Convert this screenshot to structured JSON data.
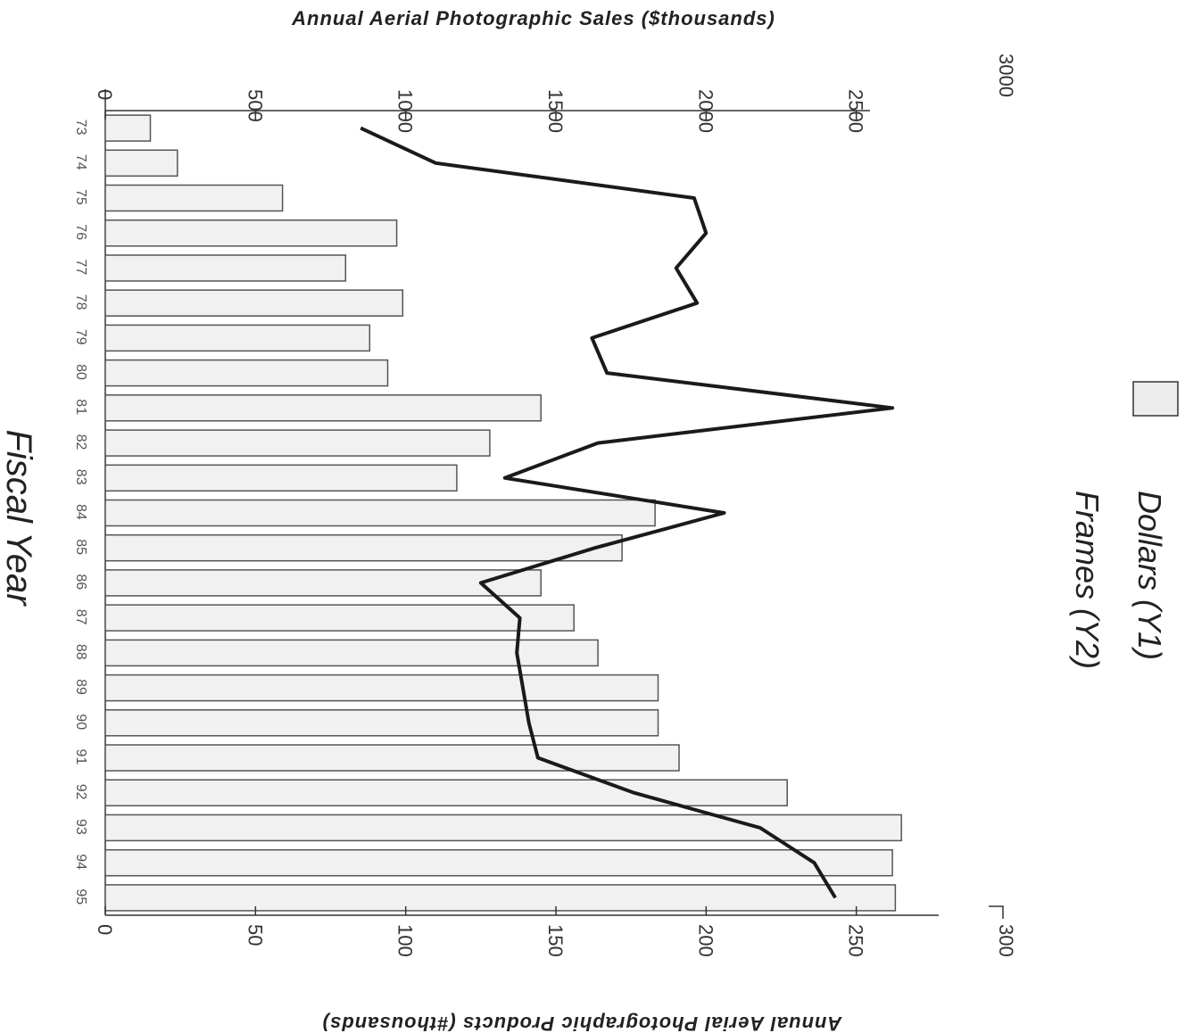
{
  "chart_data": {
    "type": "bar",
    "title": "",
    "orientation": "horizontal bars (figure rotated 90°)",
    "categories": [
      "73",
      "74",
      "75",
      "76",
      "77",
      "78",
      "79",
      "80",
      "81",
      "82",
      "83",
      "84",
      "85",
      "86",
      "87",
      "88",
      "89",
      "90",
      "91",
      "92",
      "93",
      "94",
      "95"
    ],
    "xlabel": "Fiscal Year",
    "y1label": "Annual Aerial Photographic Sales ($thousands)",
    "y2label": "Annual Aerial Photographic Products (#thousands)",
    "y1lim": [
      0,
      3000
    ],
    "y2lim": [
      0,
      300
    ],
    "y1ticks": [
      "0",
      "500",
      "1000",
      "1500",
      "2000",
      "2500",
      "3000"
    ],
    "y2ticks": [
      "0",
      "50",
      "100",
      "150",
      "200",
      "250",
      "300"
    ],
    "series": [
      {
        "name": "Frames (Y2)",
        "type": "bar",
        "axis": "y2",
        "values": [
          15,
          24,
          59,
          97,
          80,
          99,
          88,
          94,
          145,
          128,
          117,
          183,
          172,
          145,
          156,
          164,
          184,
          184,
          191,
          227,
          265,
          262,
          263
        ]
      },
      {
        "name": "Dollars (Y1)",
        "type": "line",
        "axis": "y1",
        "values": [
          850,
          1100,
          1960,
          2000,
          1900,
          1970,
          1620,
          1670,
          2620,
          1640,
          1330,
          2060,
          1630,
          1250,
          1380,
          1370,
          1390,
          1410,
          1440,
          1760,
          2180,
          2360,
          2430
        ]
      }
    ],
    "legend": {
      "placement": "right",
      "entries": [
        "Dollars (Y1)",
        "Frames (Y2)"
      ]
    },
    "colors": {
      "bar_fill": "#f1f1f1",
      "bar_stroke": "#555555",
      "line": "#1a1a1a"
    },
    "grid": false
  }
}
